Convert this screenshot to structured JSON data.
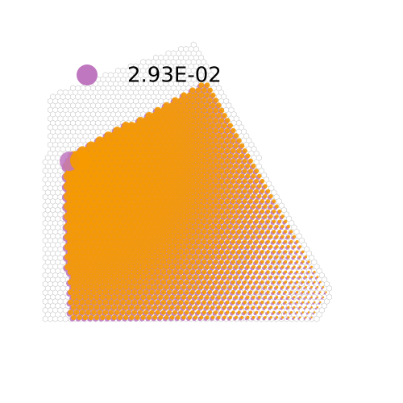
{
  "legend": {
    "label": "2.93E-02",
    "color": "#bf77bf"
  }
}
